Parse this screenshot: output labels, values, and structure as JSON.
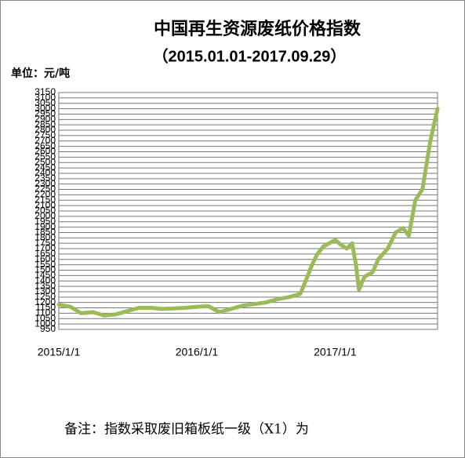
{
  "chart_data": {
    "type": "line",
    "title": "中国再生资源废纸价格指数",
    "subtitle": "（2015.01.01-2017.09.29）",
    "unit_label": "单位：元/吨",
    "note": "备注：指数采取废旧箱板纸一级（X1）为",
    "x": [
      "2015/1/1",
      "2015/2/1",
      "2015/3/1",
      "2015/4/1",
      "2015/5/1",
      "2015/6/1",
      "2015/7/1",
      "2015/8/1",
      "2015/9/1",
      "2015/10/1",
      "2015/11/1",
      "2015/12/1",
      "2016/1/1",
      "2016/2/1",
      "2016/3/1",
      "2016/4/1",
      "2016/5/1",
      "2016/6/1",
      "2016/7/1",
      "2016/8/1",
      "2016/9/1",
      "2016/10/1",
      "2016/10/15",
      "2016/11/1",
      "2016/11/15",
      "2016/12/1",
      "2017/1/1",
      "2017/1/15",
      "2017/2/1",
      "2017/2/15",
      "2017/2/25",
      "2017/3/5",
      "2017/3/20",
      "2017/4/10",
      "2017/4/25",
      "2017/5/20",
      "2017/6/10",
      "2017/6/30",
      "2017/7/15",
      "2017/8/1",
      "2017/8/20",
      "2017/9/10",
      "2017/9/29"
    ],
    "series": [
      {
        "color": "#9bbb59",
        "values": [
          1180,
          1160,
          1100,
          1110,
          1080,
          1090,
          1120,
          1150,
          1150,
          1140,
          1145,
          1150,
          1160,
          1165,
          1110,
          1140,
          1170,
          1185,
          1200,
          1230,
          1250,
          1280,
          1400,
          1550,
          1650,
          1720,
          1780,
          1740,
          1700,
          1750,
          1550,
          1320,
          1440,
          1480,
          1600,
          1700,
          1850,
          1890,
          1820,
          2150,
          2250,
          2700,
          3000
        ]
      }
    ],
    "xlim": [
      "2015/1/1",
      "2017/9/29"
    ],
    "xticks": [
      "2015/1/1",
      "2016/1/1",
      "2017/1/1"
    ],
    "ylim": [
      950,
      3150
    ],
    "yticks": [
      950,
      1000,
      1050,
      1100,
      1150,
      1200,
      1250,
      1300,
      1350,
      1400,
      1450,
      1500,
      1550,
      1600,
      1650,
      1700,
      1750,
      1800,
      1850,
      1900,
      1950,
      2000,
      2050,
      2100,
      2150,
      2200,
      2250,
      2300,
      2350,
      2400,
      2450,
      2500,
      2550,
      2600,
      2650,
      2700,
      2750,
      2800,
      2850,
      2900,
      2950,
      3000,
      3050,
      3100,
      3150
    ],
    "grid": true
  }
}
